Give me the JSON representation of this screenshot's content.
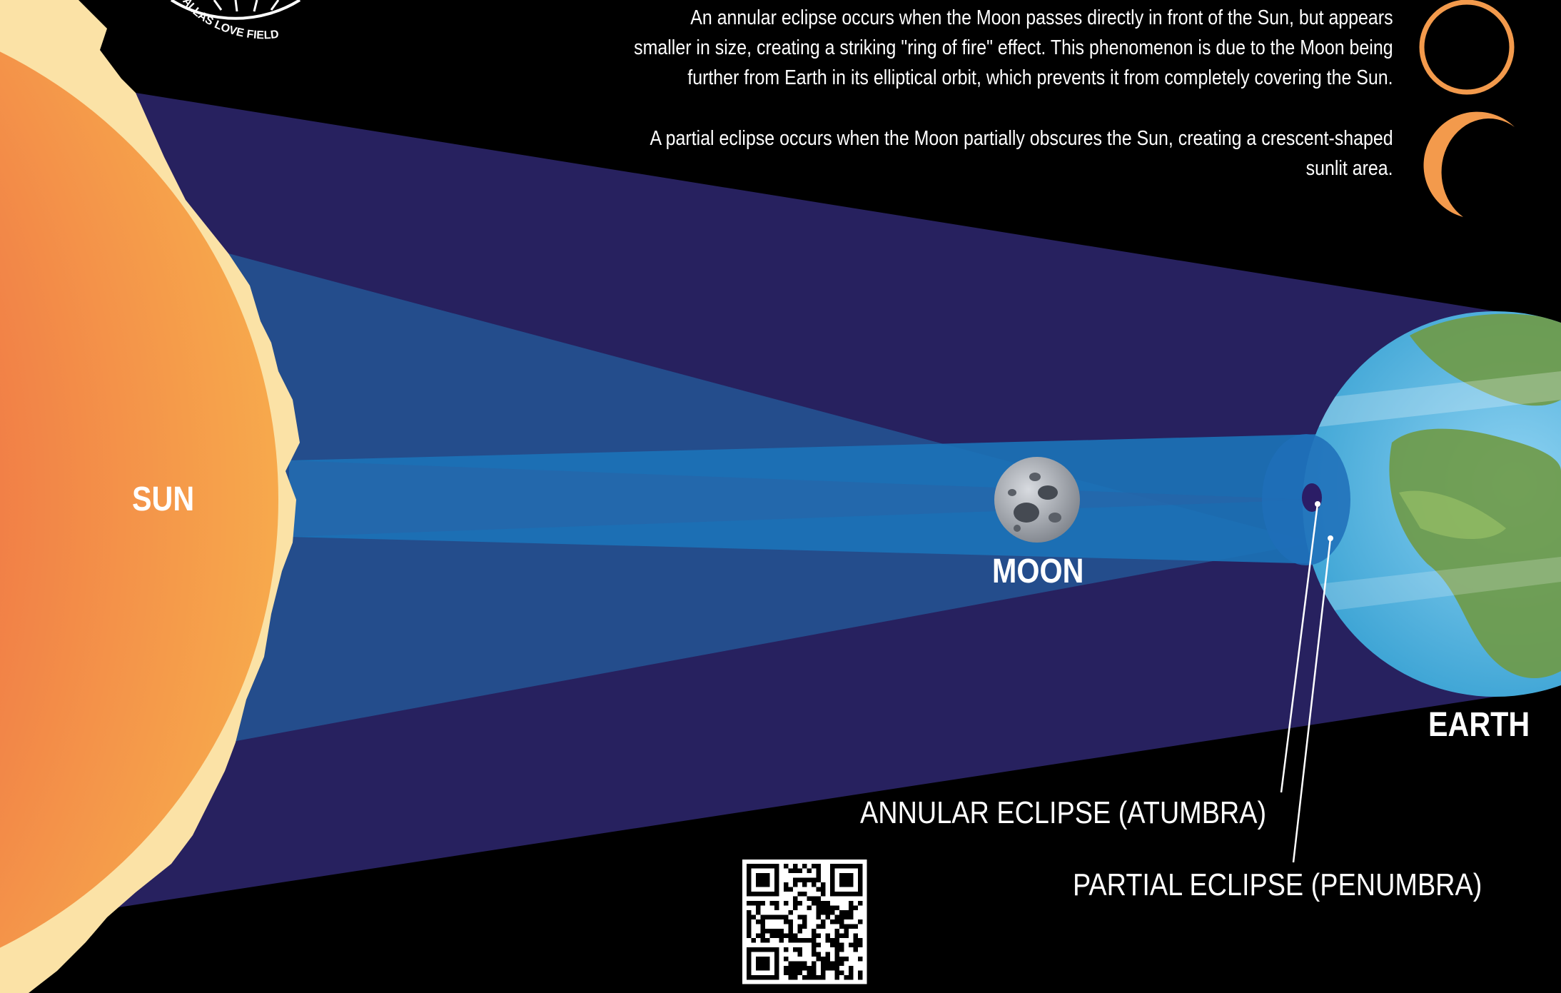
{
  "logo": {
    "text": "DALLAS LOVE FIELD"
  },
  "descriptions": {
    "annular": [
      "An annular eclipse occurs when the Moon passes directly in front of the Sun, but appears",
      "smaller in size, creating a striking \"ring of fire\" effect. This phenomenon is due to the Moon being",
      "further from Earth in its elliptical orbit, which prevents it from completely covering the Sun."
    ],
    "partial": [
      "A partial eclipse occurs when the Moon partially obscures the Sun, creating a crescent-shaped",
      "sunlit area."
    ]
  },
  "bodies": {
    "sun": "SUN",
    "moon": "MOON",
    "earth": "EARTH"
  },
  "callouts": {
    "annular": "ANNULAR ECLIPSE (ATUMBRA)",
    "partial": "PARTIAL ECLIPSE (PENUMBRA)"
  },
  "colors": {
    "background": "#000000",
    "penumbra_outer": "#27215f",
    "penumbra_mid": "#244d8c",
    "umbra_core": "#1c73b8",
    "sun_core": "#e8404a",
    "sun_edge": "#f6a54a",
    "sun_corona": "#fbe2a6",
    "ring_icon": "#f39a4c",
    "earth_ocean": "#4eb3e0",
    "earth_land": "#6f9a46"
  },
  "icons": [
    "ring-of-fire-icon",
    "crescent-icon",
    "qr-code"
  ]
}
